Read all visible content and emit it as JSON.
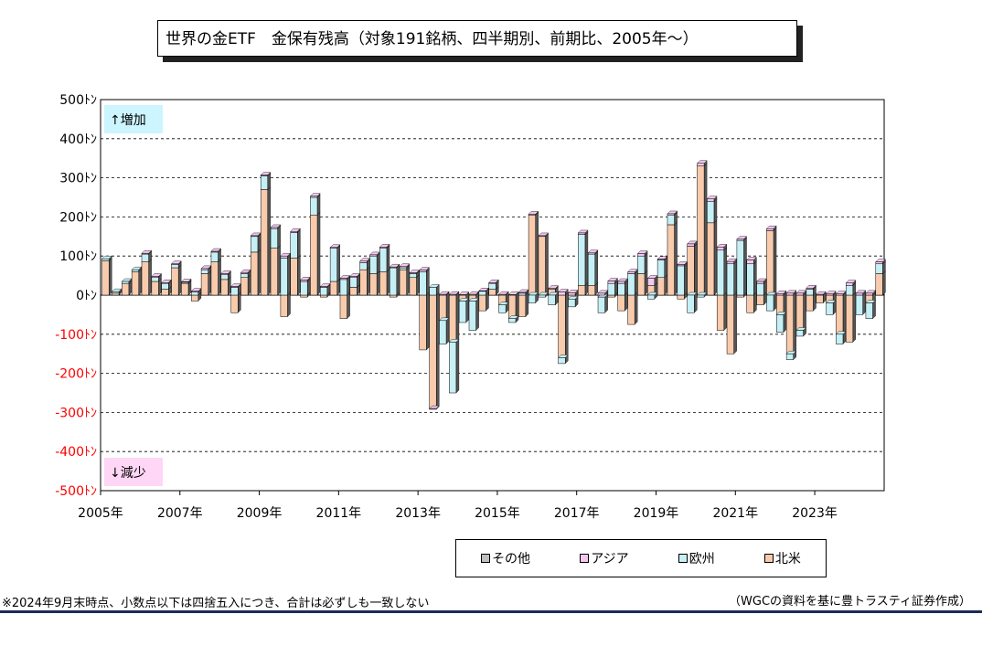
{
  "title": "世界の金ETF　金保有残高（対象191銘柄、四半期別、前期比、2005年～）",
  "annotations": {
    "increase": "↑増加",
    "decrease": "↓減少"
  },
  "footnote": "※2024年9月末時点、小数点以下は四捨五入につき、合計は必ずしも一致しない",
  "source": "（WGCの資料を基に豊トラスティ証券作成）",
  "colors": {
    "north_america": "#f8cbad",
    "europe": "#c6f0f6",
    "asia": "#f4c8f0",
    "other": "#bfbfbf",
    "increase_bg": "#ccf5ff",
    "decrease_bg": "#ffd6f5"
  },
  "chart_data": {
    "type": "bar",
    "stacked": true,
    "ylim": [
      -500,
      500
    ],
    "ytick_labels": [
      "500ﾄﾝ",
      "400ﾄﾝ",
      "300ﾄﾝ",
      "200ﾄﾝ",
      "100ﾄﾝ",
      "0ﾄﾝ",
      "-100ﾄﾝ",
      "-200ﾄﾝ",
      "-300ﾄﾝ",
      "-400ﾄﾝ",
      "-500ﾄﾝ"
    ],
    "yticks": [
      500,
      400,
      300,
      200,
      100,
      0,
      -100,
      -200,
      -300,
      -400,
      -500
    ],
    "xtick_labels": [
      "2005年",
      "2007年",
      "2009年",
      "2011年",
      "2013年",
      "2015年",
      "2017年",
      "2019年",
      "2021年",
      "2023年"
    ],
    "xtick_index": [
      0,
      8,
      16,
      24,
      32,
      40,
      48,
      56,
      64,
      72
    ],
    "grid": true,
    "legend_position": "bottom-right",
    "series": [
      {
        "name": "その他",
        "values": [
          0,
          0,
          0,
          0,
          0,
          0,
          0,
          0,
          0,
          0,
          0,
          0,
          0,
          0,
          0,
          0,
          0,
          0,
          0,
          0,
          0,
          0,
          0,
          0,
          0,
          0,
          0,
          0,
          0,
          0,
          0,
          0,
          0,
          0,
          0,
          0,
          0,
          0,
          0,
          0,
          0,
          0,
          0,
          0,
          0,
          0,
          0,
          0,
          0,
          0,
          0,
          0,
          0,
          0,
          0,
          0,
          0,
          0,
          0,
          0,
          0,
          0,
          0,
          0,
          0,
          0,
          0,
          0,
          0,
          0,
          0,
          0,
          0,
          0,
          0,
          0,
          0,
          0,
          0
        ]
      },
      {
        "name": "アジア",
        "values": [
          0,
          0,
          0,
          0,
          2,
          3,
          2,
          2,
          1,
          2,
          3,
          2,
          3,
          2,
          3,
          2,
          2,
          3,
          5,
          3,
          4,
          3,
          2,
          2,
          3,
          3,
          4,
          3,
          3,
          2,
          3,
          2,
          4,
          -2,
          2,
          2,
          1,
          2,
          1,
          2,
          2,
          1,
          2,
          2,
          2,
          2,
          8,
          6,
          4,
          3,
          5,
          6,
          5,
          4,
          6,
          18,
          2,
          3,
          3,
          6,
          7,
          6,
          8,
          6,
          3,
          10,
          5,
          5,
          4,
          5,
          5,
          3,
          2,
          3,
          3,
          6,
          5,
          5,
          5
        ]
      },
      {
        "name": "欧州",
        "values": [
          5,
          4,
          5,
          5,
          20,
          10,
          15,
          8,
          3,
          8,
          10,
          25,
          12,
          20,
          10,
          40,
          35,
          50,
          95,
          65,
          35,
          45,
          20,
          85,
          40,
          25,
          18,
          45,
          60,
          70,
          5,
          10,
          60,
          20,
          -60,
          -130,
          -55,
          -75,
          10,
          15,
          -20,
          -10,
          5,
          -20,
          -5,
          -25,
          -15,
          -20,
          130,
          80,
          -40,
          30,
          30,
          55,
          45,
          -10,
          45,
          25,
          75,
          -45,
          -5,
          55,
          115,
          80,
          140,
          80,
          30,
          -40,
          -45,
          -15,
          -15,
          15,
          0,
          -30,
          -25,
          25,
          -50,
          -40,
          25
        ]
      },
      {
        "name": "北米",
        "values": [
          88,
          5,
          30,
          60,
          85,
          35,
          15,
          70,
          30,
          -15,
          55,
          85,
          40,
          -45,
          45,
          110,
          270,
          120,
          -55,
          95,
          -5,
          205,
          -5,
          35,
          -60,
          20,
          65,
          55,
          60,
          -5,
          65,
          45,
          -140,
          -290,
          -65,
          -120,
          -15,
          -15,
          -40,
          15,
          -25,
          -60,
          -55,
          205,
          150,
          15,
          -160,
          -10,
          25,
          25,
          -5,
          -5,
          -40,
          -75,
          55,
          25,
          45,
          180,
          -10,
          125,
          330,
          185,
          -90,
          -150,
          -5,
          -45,
          -25,
          165,
          -50,
          -150,
          -90,
          -40,
          -20,
          -20,
          -100,
          -120,
          0,
          -20,
          55
        ]
      }
    ]
  }
}
